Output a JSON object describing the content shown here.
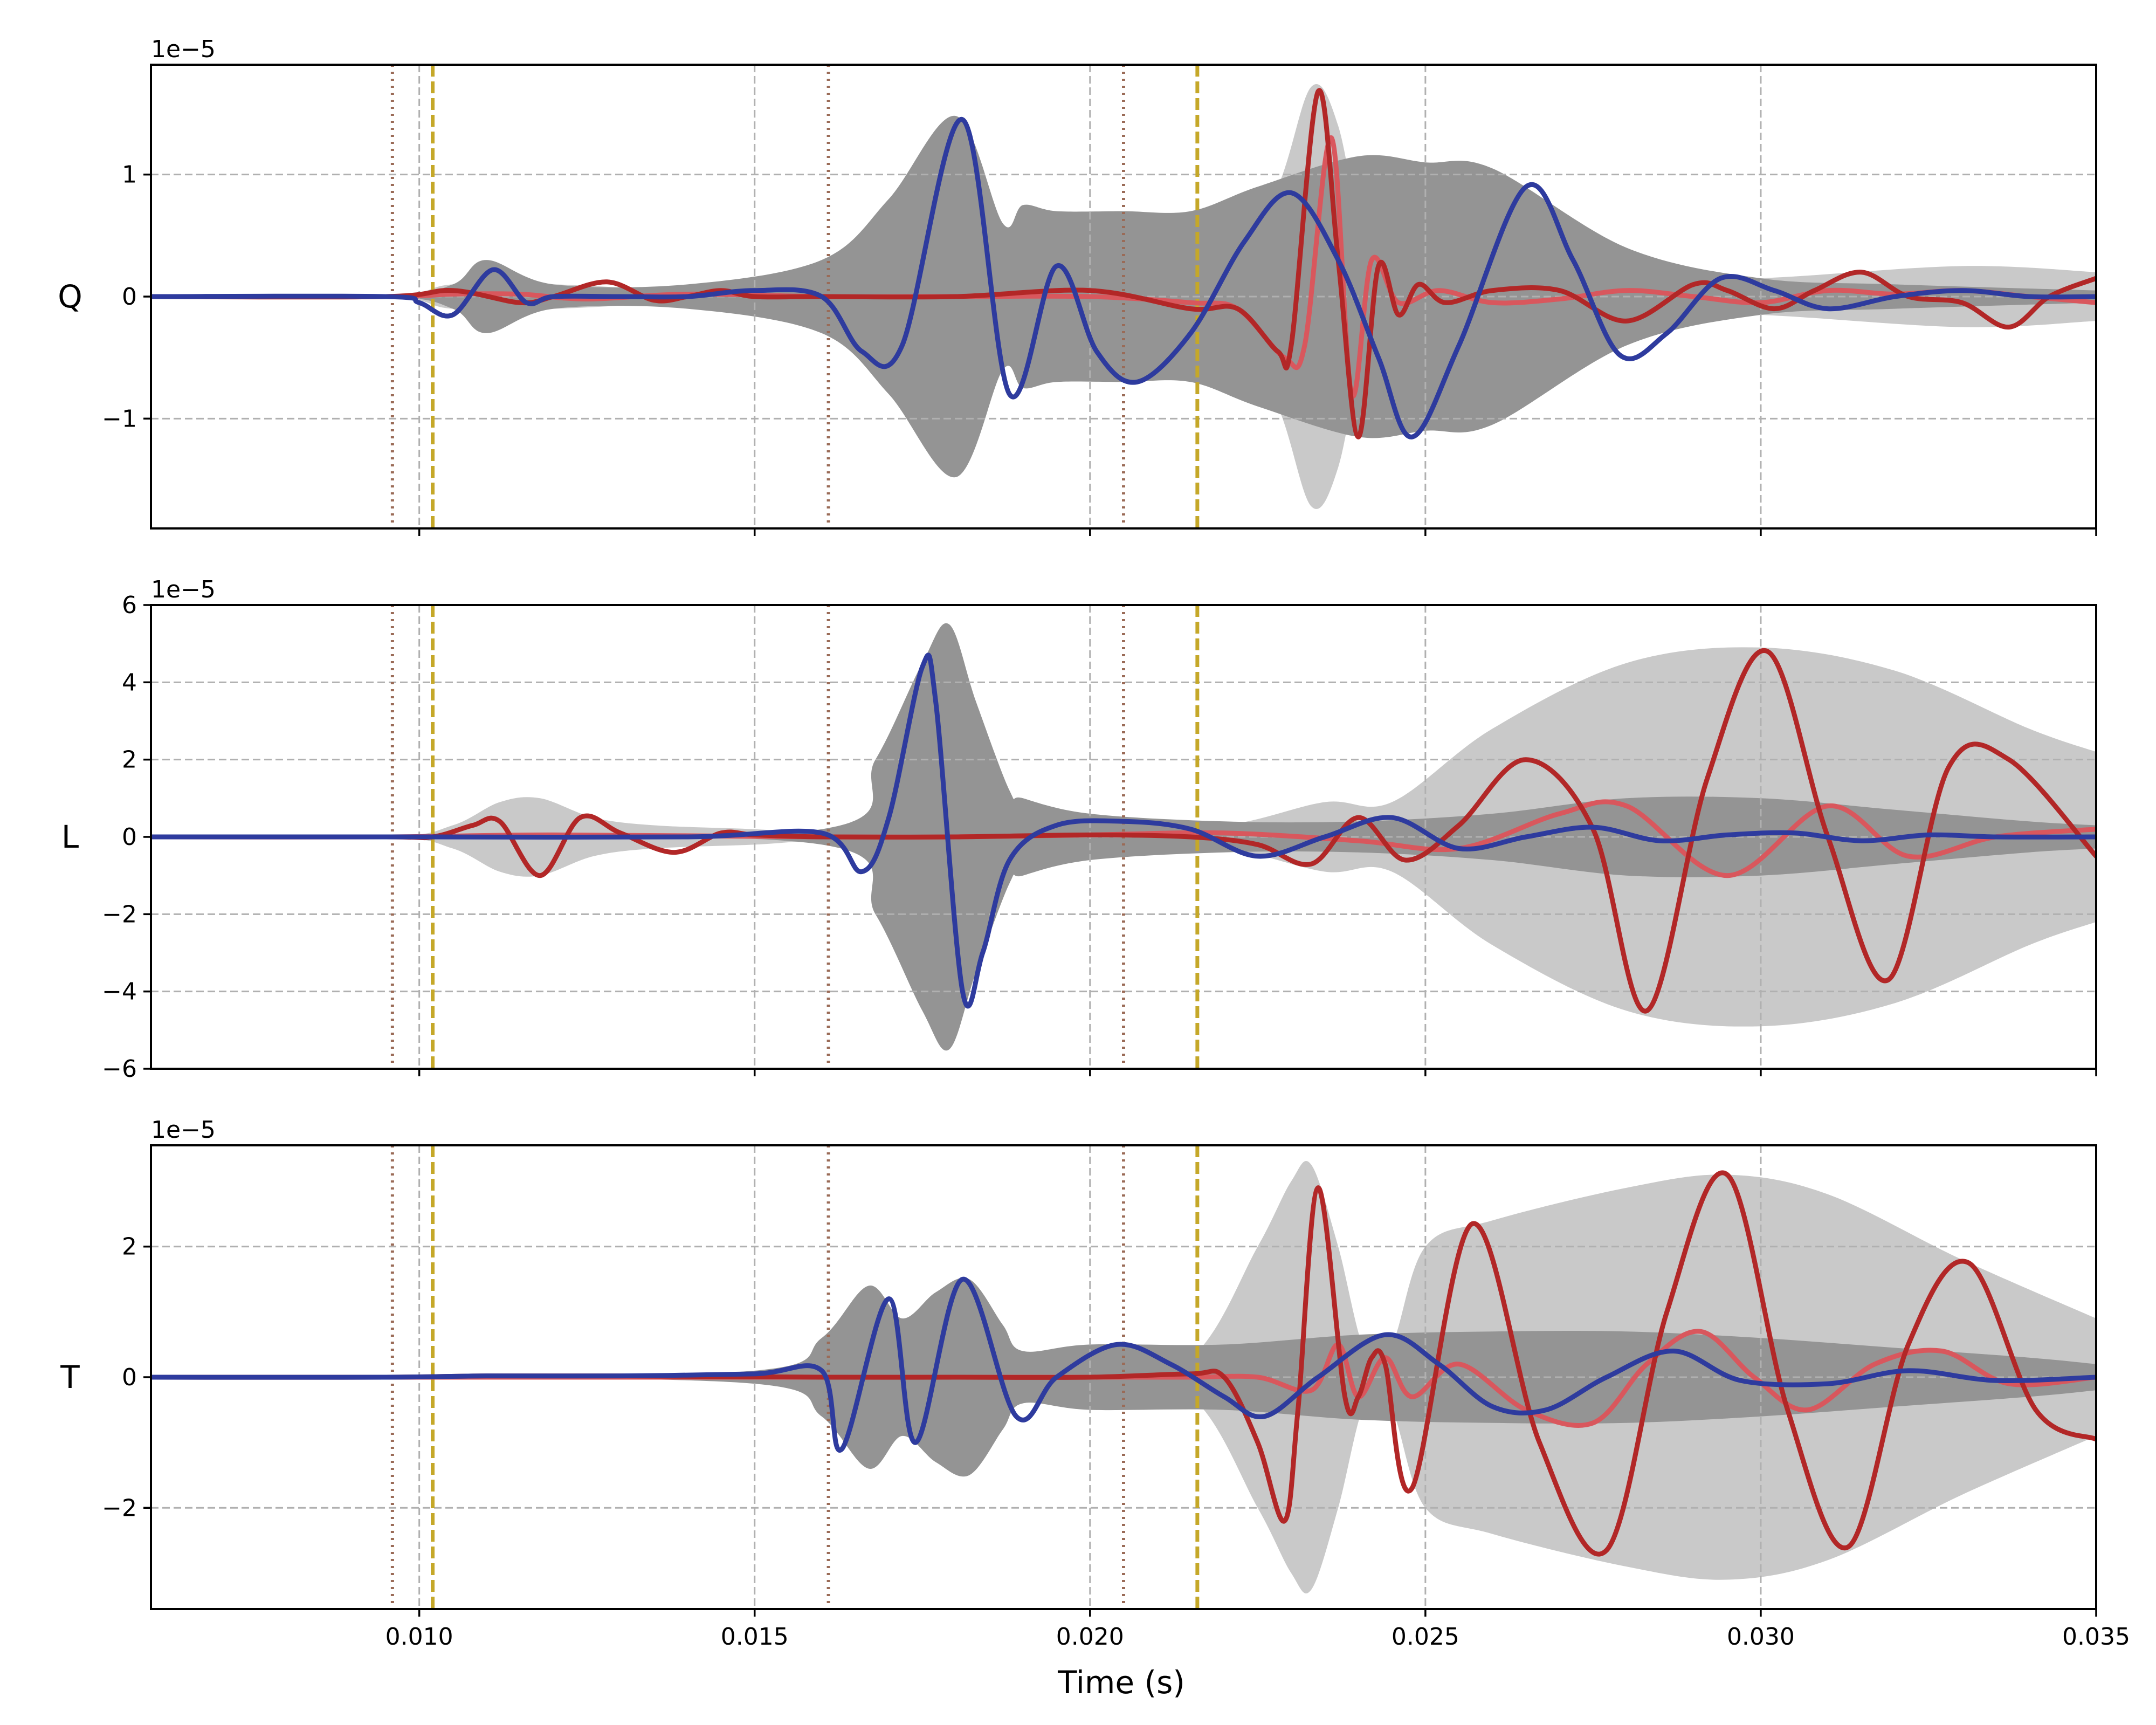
{
  "chart_data": [
    {
      "type": "line",
      "panel": "Q",
      "ylabel": "Q",
      "offset_text": "1e−5",
      "xlim": [
        0.006,
        0.035
      ],
      "ylim": [
        -1.9,
        1.9
      ],
      "yticks": [
        -1,
        0,
        1
      ],
      "ytick_labels": [
        "−1",
        "0",
        "1"
      ],
      "grid": true,
      "vlines_dotted": [
        0.0096,
        0.0161,
        0.0205
      ],
      "vlines_dashed": [
        0.0102,
        0.0216
      ],
      "bands": [
        {
          "shade": "light",
          "x": [
            0.006,
            0.0095,
            0.0105,
            0.012,
            0.014,
            0.016,
            0.018,
            0.02,
            0.0215,
            0.022,
            0.0228,
            0.0233,
            0.0237,
            0.0241,
            0.0245,
            0.025,
            0.027,
            0.03,
            0.033,
            0.035
          ],
          "upper": [
            0,
            0,
            0.1,
            0.1,
            0.05,
            0.05,
            0.05,
            0.05,
            0.05,
            0.1,
            0.9,
            1.72,
            1.4,
            0.35,
            0.15,
            0.1,
            0.1,
            0.15,
            0.25,
            0.2
          ],
          "lower": [
            0,
            0,
            -0.1,
            -0.1,
            -0.05,
            -0.05,
            -0.05,
            -0.05,
            -0.05,
            -0.1,
            -0.9,
            -1.72,
            -1.4,
            -0.35,
            -0.15,
            -0.1,
            -0.1,
            -0.15,
            -0.25,
            -0.2
          ]
        },
        {
          "shade": "dark",
          "x": [
            0.006,
            0.0095,
            0.0105,
            0.011,
            0.012,
            0.014,
            0.016,
            0.017,
            0.018,
            0.0187,
            0.019,
            0.0195,
            0.0205,
            0.0215,
            0.0225,
            0.024,
            0.025,
            0.026,
            0.028,
            0.03,
            0.032,
            0.035
          ],
          "upper": [
            0,
            0,
            0.1,
            0.3,
            0.1,
            0.1,
            0.3,
            0.8,
            1.48,
            0.6,
            0.75,
            0.7,
            0.7,
            0.7,
            0.9,
            1.15,
            1.1,
            1.05,
            0.4,
            0.15,
            0.1,
            0.05
          ],
          "lower": [
            0,
            0,
            -0.1,
            -0.3,
            -0.1,
            -0.1,
            -0.3,
            -0.8,
            -1.48,
            -0.6,
            -0.75,
            -0.7,
            -0.7,
            -0.7,
            -0.9,
            -1.15,
            -1.1,
            -1.05,
            -0.4,
            -0.15,
            -0.1,
            -0.05
          ]
        }
      ],
      "series": [
        {
          "color": "#2e3b9e",
          "x": [
            0.006,
            0.0095,
            0.01,
            0.0105,
            0.0111,
            0.0116,
            0.012,
            0.013,
            0.014,
            0.015,
            0.016,
            0.0166,
            0.0172,
            0.0181,
            0.0188,
            0.0195,
            0.0201,
            0.0207,
            0.0215,
            0.0223,
            0.023,
            0.0237,
            0.0243,
            0.0248,
            0.0255,
            0.0265,
            0.0272,
            0.0279,
            0.0286,
            0.0294,
            0.0302,
            0.031,
            0.032,
            0.033,
            0.034,
            0.035
          ],
          "y": [
            0,
            0,
            -0.05,
            -0.15,
            0.22,
            -0.05,
            0,
            0,
            0,
            0.05,
            0.0,
            -0.45,
            -0.4,
            1.45,
            -0.8,
            0.25,
            -0.45,
            -0.7,
            -0.3,
            0.45,
            0.85,
            0.3,
            -0.5,
            -1.15,
            -0.4,
            0.9,
            0.3,
            -0.48,
            -0.3,
            0.15,
            0.05,
            -0.1,
            0.0,
            0.05,
            0.0,
            0.0
          ]
        },
        {
          "color": "#b22727",
          "x": [
            0.006,
            0.0095,
            0.0105,
            0.0115,
            0.012,
            0.0128,
            0.0135,
            0.014,
            0.0145,
            0.015,
            0.016,
            0.018,
            0.02,
            0.0215,
            0.0222,
            0.0228,
            0.023,
            0.0234,
            0.0237,
            0.024,
            0.0243,
            0.0246,
            0.0249,
            0.0253,
            0.026,
            0.027,
            0.028,
            0.029,
            0.0295,
            0.0302,
            0.0308,
            0.0315,
            0.0322,
            0.033,
            0.0337,
            0.0343,
            0.035
          ],
          "y": [
            0,
            0,
            0.05,
            -0.05,
            0,
            0.12,
            -0.03,
            0,
            0.05,
            0,
            0,
            0,
            0.05,
            -0.1,
            -0.1,
            -0.45,
            -0.4,
            1.68,
            0.3,
            -1.15,
            0.25,
            -0.15,
            0.1,
            -0.05,
            0.05,
            0.05,
            -0.2,
            0.1,
            0.05,
            -0.1,
            0.05,
            0.2,
            0.0,
            -0.05,
            -0.25,
            0.0,
            0.15
          ]
        },
        {
          "color": "#d9575d",
          "x": [
            0.006,
            0.0095,
            0.0105,
            0.0115,
            0.0125,
            0.014,
            0.016,
            0.018,
            0.02,
            0.0215,
            0.0222,
            0.0229,
            0.0232,
            0.0236,
            0.0239,
            0.0242,
            0.0246,
            0.0252,
            0.026,
            0.027,
            0.028,
            0.029,
            0.03,
            0.031,
            0.032,
            0.033,
            0.034,
            0.035
          ],
          "y": [
            0,
            0,
            0.02,
            0.02,
            -0.02,
            0.02,
            0.0,
            0.0,
            0.0,
            -0.05,
            -0.1,
            -0.5,
            -0.4,
            1.3,
            -0.8,
            0.3,
            -0.05,
            0.05,
            -0.05,
            -0.02,
            0.05,
            0.0,
            -0.05,
            0.05,
            0.02,
            0.05,
            0.0,
            -0.05
          ]
        }
      ]
    },
    {
      "type": "line",
      "panel": "L",
      "ylabel": "L",
      "offset_text": "1e−5",
      "xlim": [
        0.006,
        0.035
      ],
      "ylim": [
        -6,
        6
      ],
      "yticks": [
        -6,
        -4,
        -2,
        0,
        2,
        4,
        6
      ],
      "ytick_labels": [
        "−6",
        "−4",
        "−2",
        "0",
        "2",
        "4",
        "6"
      ],
      "grid": true,
      "vlines_dotted": [
        0.0096,
        0.0161,
        0.0205
      ],
      "vlines_dashed": [
        0.0102,
        0.0216
      ],
      "bands": [
        {
          "shade": "light",
          "x": [
            0.006,
            0.0095,
            0.0105,
            0.0112,
            0.0118,
            0.0126,
            0.0135,
            0.015,
            0.016,
            0.018,
            0.02,
            0.022,
            0.0235,
            0.0245,
            0.026,
            0.028,
            0.03,
            0.032,
            0.034,
            0.035
          ],
          "upper": [
            0,
            0,
            0.3,
            0.9,
            1.0,
            0.5,
            0.3,
            0.2,
            0.1,
            0.1,
            0.2,
            0.3,
            0.9,
            0.9,
            2.8,
            4.5,
            4.9,
            4.3,
            2.8,
            2.2
          ],
          "lower": [
            0,
            0,
            -0.3,
            -0.9,
            -1.0,
            -0.5,
            -0.3,
            -0.2,
            -0.1,
            -0.1,
            -0.2,
            -0.3,
            -0.9,
            -0.9,
            -2.8,
            -4.5,
            -4.9,
            -4.3,
            -2.8,
            -2.2
          ]
        },
        {
          "shade": "dark",
          "x": [
            0.006,
            0.0095,
            0.016,
            0.0168,
            0.0175,
            0.0179,
            0.0183,
            0.0188,
            0.019,
            0.02,
            0.022,
            0.024,
            0.026,
            0.028,
            0.03,
            0.032,
            0.034,
            0.035
          ],
          "upper": [
            0,
            0,
            0.2,
            2.0,
            4.5,
            5.5,
            3.5,
            1.2,
            1.0,
            0.6,
            0.4,
            0.4,
            0.6,
            1.0,
            1.0,
            0.7,
            0.4,
            0.3
          ],
          "lower": [
            0,
            0,
            -0.2,
            -2.0,
            -4.5,
            -5.5,
            -3.5,
            -1.2,
            -1.0,
            -0.6,
            -0.4,
            -0.4,
            -0.6,
            -1.0,
            -1.0,
            -0.7,
            -0.4,
            -0.3
          ]
        }
      ],
      "series": [
        {
          "color": "#2e3b9e",
          "x": [
            0.006,
            0.0095,
            0.01,
            0.014,
            0.016,
            0.0166,
            0.017,
            0.0175,
            0.0177,
            0.0181,
            0.0184,
            0.0188,
            0.0195,
            0.0205,
            0.0215,
            0.0225,
            0.0235,
            0.0245,
            0.0255,
            0.0265,
            0.0275,
            0.0285,
            0.0295,
            0.0305,
            0.0315,
            0.0325,
            0.0335,
            0.035
          ],
          "y": [
            0,
            0,
            0,
            0,
            0.1,
            -0.9,
            0.5,
            4.4,
            3.5,
            -4.0,
            -3.0,
            -0.6,
            0.3,
            0.4,
            0.2,
            -0.5,
            0.0,
            0.5,
            -0.3,
            0.0,
            0.25,
            -0.1,
            0.05,
            0.1,
            -0.1,
            0.05,
            0.0,
            0.0
          ]
        },
        {
          "color": "#b22727",
          "x": [
            0.006,
            0.0095,
            0.0102,
            0.0108,
            0.0112,
            0.0118,
            0.0124,
            0.013,
            0.0138,
            0.0145,
            0.015,
            0.016,
            0.018,
            0.02,
            0.0215,
            0.0225,
            0.0233,
            0.024,
            0.0247,
            0.0255,
            0.0265,
            0.0275,
            0.0283,
            0.0292,
            0.0301,
            0.031,
            0.0319,
            0.0328,
            0.0337,
            0.035
          ],
          "y": [
            0,
            0,
            0,
            0.3,
            0.4,
            -1.0,
            0.5,
            0.1,
            -0.4,
            0.1,
            0.05,
            0.0,
            0.0,
            0.05,
            0.0,
            -0.2,
            -0.7,
            0.5,
            -0.6,
            0.3,
            2.0,
            0.2,
            -4.5,
            1.5,
            4.8,
            0.0,
            -3.7,
            1.8,
            2.0,
            -0.5
          ]
        },
        {
          "color": "#d9575d",
          "x": [
            0.006,
            0.0095,
            0.012,
            0.016,
            0.018,
            0.02,
            0.022,
            0.024,
            0.0255,
            0.027,
            0.028,
            0.0295,
            0.031,
            0.0322,
            0.0335,
            0.035
          ],
          "y": [
            0,
            0,
            0.05,
            0.0,
            0.0,
            0.05,
            0.1,
            -0.1,
            -0.3,
            0.6,
            0.8,
            -1.0,
            0.8,
            -0.5,
            0.0,
            0.2
          ]
        }
      ]
    },
    {
      "type": "line",
      "panel": "T",
      "ylabel": "T",
      "offset_text": "1e−5",
      "xlim": [
        0.006,
        0.035
      ],
      "ylim": [
        -3.55,
        3.55
      ],
      "yticks": [
        -2,
        0,
        2
      ],
      "ytick_labels": [
        "−2",
        "0",
        "2"
      ],
      "grid": true,
      "vlines_dotted": [
        0.0096,
        0.0161,
        0.0205
      ],
      "vlines_dashed": [
        0.0102,
        0.0216
      ],
      "bands": [
        {
          "shade": "light",
          "x": [
            0.006,
            0.0095,
            0.015,
            0.02,
            0.0215,
            0.0225,
            0.023,
            0.0233,
            0.0237,
            0.0241,
            0.0245,
            0.025,
            0.026,
            0.028,
            0.0295,
            0.031,
            0.033,
            0.035
          ],
          "upper": [
            0,
            0,
            0.05,
            0.1,
            0.3,
            2.0,
            3.0,
            3.25,
            2.0,
            0.4,
            0.5,
            2.0,
            2.4,
            2.9,
            3.1,
            2.8,
            1.8,
            0.9
          ],
          "lower": [
            0,
            0,
            -0.05,
            -0.1,
            -0.3,
            -2.0,
            -3.0,
            -3.25,
            -2.0,
            -0.4,
            -0.5,
            -2.0,
            -2.4,
            -2.9,
            -3.1,
            -2.8,
            -1.8,
            -0.9
          ]
        },
        {
          "shade": "dark",
          "x": [
            0.006,
            0.0095,
            0.015,
            0.016,
            0.0167,
            0.0172,
            0.0177,
            0.0182,
            0.0187,
            0.019,
            0.02,
            0.022,
            0.024,
            0.026,
            0.028,
            0.03,
            0.032,
            0.034,
            0.035
          ],
          "upper": [
            0,
            0,
            0.1,
            0.6,
            1.4,
            0.9,
            1.3,
            1.5,
            0.8,
            0.4,
            0.5,
            0.5,
            0.65,
            0.7,
            0.7,
            0.6,
            0.45,
            0.3,
            0.2
          ],
          "lower": [
            0,
            0,
            -0.1,
            -0.6,
            -1.4,
            -0.9,
            -1.3,
            -1.5,
            -0.8,
            -0.4,
            -0.5,
            -0.5,
            -0.65,
            -0.7,
            -0.7,
            -0.6,
            -0.45,
            -0.3,
            -0.2
          ]
        }
      ],
      "series": [
        {
          "color": "#2e3b9e",
          "x": [
            0.006,
            0.0095,
            0.011,
            0.013,
            0.015,
            0.016,
            0.0163,
            0.017,
            0.0174,
            0.0181,
            0.0189,
            0.0195,
            0.0204,
            0.0212,
            0.022,
            0.0226,
            0.0234,
            0.0244,
            0.0252,
            0.026,
            0.0268,
            0.0277,
            0.0287,
            0.0297,
            0.031,
            0.0322,
            0.0335,
            0.035
          ],
          "y": [
            0,
            0,
            0.02,
            0.02,
            0.05,
            0.1,
            -1.1,
            1.2,
            -1.0,
            1.5,
            -0.6,
            0.0,
            0.5,
            0.2,
            -0.3,
            -0.6,
            0.0,
            0.65,
            0.2,
            -0.45,
            -0.5,
            0.0,
            0.4,
            -0.05,
            -0.1,
            0.1,
            -0.05,
            0.0
          ]
        },
        {
          "color": "#b22727",
          "x": [
            0.006,
            0.0095,
            0.011,
            0.013,
            0.016,
            0.018,
            0.02,
            0.0215,
            0.022,
            0.0225,
            0.0229,
            0.0231,
            0.0234,
            0.0238,
            0.024,
            0.0242,
            0.0244,
            0.0248,
            0.0257,
            0.0267,
            0.0277,
            0.0286,
            0.0295,
            0.0304,
            0.0313,
            0.0322,
            0.0331,
            0.0341,
            0.035
          ],
          "y": [
            0,
            0,
            0.02,
            0.02,
            0.0,
            0.0,
            0.0,
            0.05,
            0.0,
            -1.0,
            -2.2,
            -0.5,
            2.9,
            -0.3,
            -0.3,
            0.3,
            0.2,
            -1.7,
            2.35,
            -1.0,
            -2.65,
            1.0,
            3.1,
            -0.5,
            -2.6,
            0.5,
            1.75,
            -0.5,
            -0.95
          ]
        },
        {
          "color": "#d9575d",
          "x": [
            0.006,
            0.0095,
            0.012,
            0.016,
            0.02,
            0.0215,
            0.0225,
            0.0233,
            0.0237,
            0.024,
            0.0244,
            0.0248,
            0.0255,
            0.0265,
            0.0275,
            0.0283,
            0.0291,
            0.0299,
            0.0307,
            0.0317,
            0.0327,
            0.0337,
            0.035
          ],
          "y": [
            0,
            0,
            0.0,
            0.0,
            0.0,
            0.0,
            0.0,
            -0.2,
            0.5,
            -0.3,
            0.3,
            -0.3,
            0.2,
            -0.5,
            -0.7,
            0.2,
            0.7,
            0.0,
            -0.5,
            0.2,
            0.4,
            -0.1,
            0.0
          ]
        }
      ]
    }
  ],
  "shared": {
    "xlabel": "Time (s)",
    "xticks": [
      0.01,
      0.015,
      0.02,
      0.025,
      0.03,
      0.035
    ],
    "xtick_labels": [
      "0.010",
      "0.015",
      "0.020",
      "0.025",
      "0.030",
      "0.035"
    ]
  },
  "colors": {
    "light_band": "#c9c9c9",
    "dark_band": "#949494",
    "grid": "#b0b0b0",
    "dotted_vline": "#9a6b57",
    "dashed_vline": "#c5a829"
  }
}
